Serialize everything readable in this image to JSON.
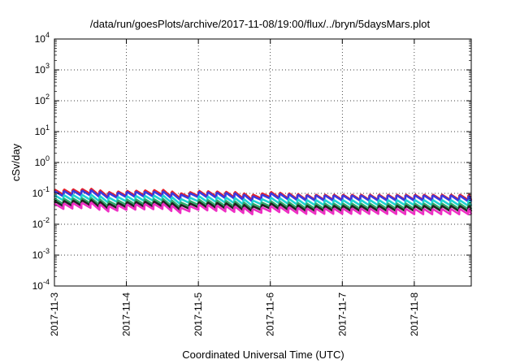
{
  "chart_data": {
    "type": "line",
    "title": "/data/run/goesPlots/archive/2017-11-08/19:00/flux/../bryn/5daysMars.plot",
    "xlabel": "Coordinated Universal Time (UTC)",
    "ylabel": "cSv/day",
    "yscale": "log",
    "ylim": [
      0.0001,
      10000
    ],
    "xlim": [
      "2017-11-03 00:00",
      "2017-11-08 19:00"
    ],
    "grid": true,
    "x_ticks": [
      "2017-11-3",
      "2017-11-4",
      "2017-11-5",
      "2017-11-6",
      "2017-11-7",
      "2017-11-8"
    ],
    "y_ticks": [
      {
        "base": "10",
        "exp": "-4"
      },
      {
        "base": "10",
        "exp": "-3"
      },
      {
        "base": "10",
        "exp": "-2"
      },
      {
        "base": "10",
        "exp": "-1"
      },
      {
        "base": "10",
        "exp": "0"
      },
      {
        "base": "10",
        "exp": "1"
      },
      {
        "base": "10",
        "exp": "2"
      },
      {
        "base": "10",
        "exp": "3"
      },
      {
        "base": "10",
        "exp": "4"
      }
    ],
    "x": [
      "2017-11-03 00:00",
      "2017-11-03 12:00",
      "2017-11-03 18:00",
      "2017-11-04 00:00",
      "2017-11-04 12:00",
      "2017-11-04 18:00",
      "2017-11-05 00:00",
      "2017-11-05 12:00",
      "2017-11-05 18:00",
      "2017-11-06 00:00",
      "2017-11-06 12:00",
      "2017-11-07 00:00",
      "2017-11-07 12:00",
      "2017-11-08 00:00",
      "2017-11-08 12:00",
      "2017-11-08 19:00"
    ],
    "sawtooth_drop": 0.32,
    "series": [
      {
        "color": "#e8202a",
        "values": [
          0.13,
          0.14,
          0.11,
          0.12,
          0.13,
          0.1,
          0.12,
          0.11,
          0.09,
          0.11,
          0.09,
          0.09,
          0.09,
          0.09,
          0.09,
          0.09
        ]
      },
      {
        "color": "#3a3adf",
        "values": [
          0.115,
          0.125,
          0.1,
          0.11,
          0.115,
          0.09,
          0.11,
          0.1,
          0.08,
          0.1,
          0.085,
          0.085,
          0.085,
          0.085,
          0.085,
          0.08
        ]
      },
      {
        "color": "#1fd3d3",
        "values": [
          0.085,
          0.09,
          0.072,
          0.08,
          0.085,
          0.065,
          0.08,
          0.07,
          0.058,
          0.072,
          0.06,
          0.06,
          0.06,
          0.06,
          0.06,
          0.058
        ]
      },
      {
        "color": "#2fa86a",
        "values": [
          0.065,
          0.07,
          0.055,
          0.062,
          0.065,
          0.05,
          0.062,
          0.054,
          0.045,
          0.055,
          0.046,
          0.046,
          0.046,
          0.046,
          0.046,
          0.045
        ]
      },
      {
        "color": "#222222",
        "values": [
          0.055,
          0.06,
          0.046,
          0.052,
          0.055,
          0.042,
          0.052,
          0.046,
          0.038,
          0.047,
          0.039,
          0.039,
          0.039,
          0.039,
          0.039,
          0.038
        ]
      },
      {
        "color": "#ee2fc4",
        "values": [
          0.045,
          0.05,
          0.038,
          0.043,
          0.046,
          0.034,
          0.043,
          0.037,
          0.031,
          0.038,
          0.032,
          0.032,
          0.032,
          0.031,
          0.031,
          0.031
        ]
      }
    ]
  }
}
